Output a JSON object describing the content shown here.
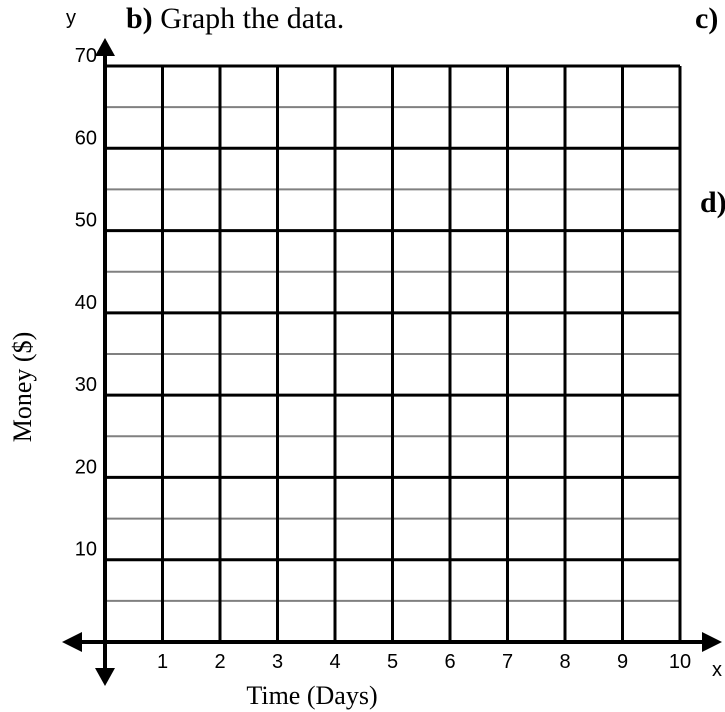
{
  "question_b": {
    "letter": "b)",
    "text": "Graph the data."
  },
  "question_c": {
    "letter": "c)"
  },
  "question_d": {
    "letter": "d)"
  },
  "chart_data": {
    "type": "scatter",
    "title": "",
    "xlabel": "Time (Days)",
    "ylabel": "Money ($)",
    "x_axis_letter": "x",
    "y_axis_letter": "y",
    "xlim": [
      0,
      10
    ],
    "ylim": [
      0,
      70
    ],
    "x_ticks": [
      1,
      2,
      3,
      4,
      5,
      6,
      7,
      8,
      9,
      10
    ],
    "y_ticks": [
      10,
      20,
      30,
      40,
      50,
      60,
      70
    ],
    "y_minor_step": 5,
    "grid": true,
    "series": []
  },
  "colors": {
    "major_grid": "#000000",
    "minor_grid": "#808080",
    "axis": "#000000"
  }
}
